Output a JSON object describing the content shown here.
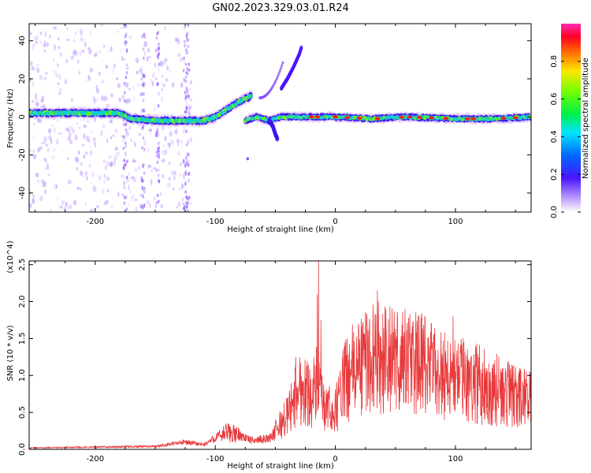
{
  "title": "GN02.2023.329.03.01.R24",
  "colors": {
    "snr_line": "#e8393b",
    "axis": "#000000",
    "spectrogram_core": "#2ad38a",
    "spectrogram_halo": "#c9a6ff"
  },
  "chart_data": [
    {
      "type": "heatmap",
      "name": "spectrogram",
      "xlabel": "Height of straight line (km)",
      "ylabel": "Frequency (Hz)",
      "xlim": [
        -255,
        163
      ],
      "ylim": [
        -50,
        49
      ],
      "x_ticks": [
        -200,
        -100,
        0,
        100
      ],
      "x_tick_labels": [
        "-200",
        "-100",
        "0",
        "100"
      ],
      "y_ticks": [
        -40,
        -20,
        0,
        20,
        40
      ],
      "y_tick_labels": [
        "-40",
        "-20",
        "0",
        "20",
        "40"
      ],
      "colorbar": {
        "label": "Normalized spectral amplitude",
        "range": [
          0,
          1
        ],
        "ticks": [
          0.0,
          0.2,
          0.4,
          0.6,
          0.8
        ],
        "tick_labels": [
          "0.0",
          "0.2",
          "0.4",
          "0.6",
          "0.8"
        ]
      },
      "ridge": [
        {
          "x": -255,
          "y": 2
        },
        {
          "x": -220,
          "y": 2
        },
        {
          "x": -180,
          "y": 2
        },
        {
          "x": -170,
          "y": -1
        },
        {
          "x": -150,
          "y": -2
        },
        {
          "x": -130,
          "y": -2
        },
        {
          "x": -110,
          "y": -2
        },
        {
          "x": -100,
          "y": 0
        },
        {
          "x": -90,
          "y": 4
        },
        {
          "x": -80,
          "y": 8
        },
        {
          "x": -70,
          "y": 11
        }
      ],
      "ridge2": [
        {
          "x": -75,
          "y": -2
        },
        {
          "x": -65,
          "y": 0
        },
        {
          "x": -55,
          "y": -2
        },
        {
          "x": -45,
          "y": 0
        },
        {
          "x": -30,
          "y": 0
        },
        {
          "x": -20,
          "y": 0
        },
        {
          "x": 0,
          "y": 0
        },
        {
          "x": 30,
          "y": -1
        },
        {
          "x": 60,
          "y": 0
        },
        {
          "x": 100,
          "y": -1
        },
        {
          "x": 130,
          "y": -1
        },
        {
          "x": 163,
          "y": 0
        }
      ],
      "arc": [
        {
          "x": -45,
          "y": 15
        },
        {
          "x": -40,
          "y": 20
        },
        {
          "x": -35,
          "y": 26
        },
        {
          "x": -30,
          "y": 33
        },
        {
          "x": -28,
          "y": 37
        }
      ],
      "branch": [
        {
          "x": -55,
          "y": -2
        },
        {
          "x": -52,
          "y": -5
        },
        {
          "x": -50,
          "y": -9
        },
        {
          "x": -48,
          "y": -12
        }
      ]
    },
    {
      "type": "line",
      "name": "snr",
      "xlabel": "Height of straight line (km)",
      "ylabel": "SNR (10 * v/v)",
      "y_multiplier": "(x10^4)",
      "xlim": [
        -255,
        163
      ],
      "ylim": [
        0,
        2.55
      ],
      "x_ticks": [
        -200,
        -100,
        0,
        100
      ],
      "x_tick_labels": [
        "-200",
        "-100",
        "0",
        "100"
      ],
      "y_ticks": [
        0.0,
        0.5,
        1.0,
        1.5,
        2.0,
        2.5
      ],
      "y_tick_labels": [
        "0.0",
        "0.5",
        "1.0",
        "1.5",
        "2.0",
        "2.5"
      ],
      "envelope": [
        {
          "x": -255,
          "y": 0.02
        },
        {
          "x": -200,
          "y": 0.03
        },
        {
          "x": -150,
          "y": 0.04
        },
        {
          "x": -125,
          "y": 0.1
        },
        {
          "x": -110,
          "y": 0.06
        },
        {
          "x": -90,
          "y": 0.25
        },
        {
          "x": -80,
          "y": 0.2
        },
        {
          "x": -70,
          "y": 0.12
        },
        {
          "x": -55,
          "y": 0.15
        },
        {
          "x": -40,
          "y": 0.5
        },
        {
          "x": -30,
          "y": 0.9
        },
        {
          "x": -20,
          "y": 0.8
        },
        {
          "x": -15,
          "y": 0.95
        },
        {
          "x": -10,
          "y": 0.6
        },
        {
          "x": 0,
          "y": 0.55
        },
        {
          "x": 5,
          "y": 0.9
        },
        {
          "x": 15,
          "y": 1.15
        },
        {
          "x": 30,
          "y": 1.35
        },
        {
          "x": 50,
          "y": 1.3
        },
        {
          "x": 70,
          "y": 1.25
        },
        {
          "x": 90,
          "y": 1.1
        },
        {
          "x": 110,
          "y": 1.0
        },
        {
          "x": 130,
          "y": 0.9
        },
        {
          "x": 150,
          "y": 0.75
        },
        {
          "x": 163,
          "y": 0.72
        }
      ],
      "peaks": [
        {
          "x": -33,
          "y": 1.25
        },
        {
          "x": -15,
          "y": 2.1
        },
        {
          "x": -14,
          "y": 2.55
        },
        {
          "x": -12,
          "y": 1.75
        },
        {
          "x": 8,
          "y": 1.45
        },
        {
          "x": 35,
          "y": 2.15
        },
        {
          "x": 42,
          "y": 1.9
        },
        {
          "x": 58,
          "y": 1.9
        },
        {
          "x": 98,
          "y": 1.8
        }
      ]
    }
  ]
}
